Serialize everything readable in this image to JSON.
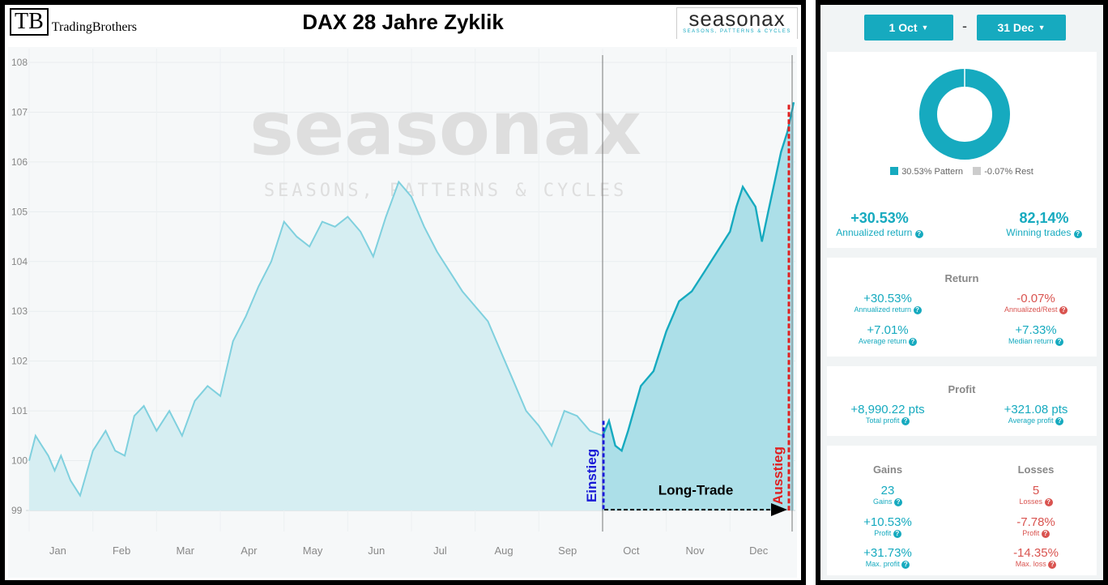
{
  "header": {
    "tb_logo": "TB",
    "tb_name": "TradingBrothers",
    "title": "DAX 28 Jahre Zyklik",
    "brand": "seasonax",
    "brand_tagline": "SEASONS, PATTERNS & CYCLES"
  },
  "watermark": {
    "brand": "seasonax",
    "tagline": "SEASONS, PATTERNS & CYCLES"
  },
  "annotations": {
    "entry": "Einstieg",
    "exit": "Ausstieg",
    "trade": "Long-Trade"
  },
  "colors": {
    "accent": "#16aabf",
    "negative": "#d9534f",
    "line_light": "#7fd0de",
    "fill_light": "#d6eef2",
    "fill_dark": "#acdfe8",
    "entry": "#1a1ad6",
    "exit": "#e02020"
  },
  "chart_data": {
    "type": "area",
    "title": "DAX 28 Jahre Zyklik",
    "xlabel": "",
    "ylabel": "",
    "x_tick_labels": [
      "Jan",
      "Feb",
      "Mar",
      "Apr",
      "May",
      "Jun",
      "Jul",
      "Aug",
      "Sep",
      "Oct",
      "Nov",
      "Dec"
    ],
    "y_tick_labels": [
      "99",
      "100",
      "101",
      "102",
      "103",
      "104",
      "105",
      "106",
      "107",
      "108"
    ],
    "ylim": [
      99,
      108
    ],
    "grid": true,
    "highlight_range": {
      "start": "1 Oct",
      "end": "31 Dec"
    },
    "series": [
      {
        "x": [
          0.0,
          0.1,
          0.2,
          0.3,
          0.4,
          0.5,
          0.65,
          0.8,
          1.0,
          1.2,
          1.35,
          1.5,
          1.65,
          1.8,
          2.0,
          2.2,
          2.4,
          2.6,
          2.8,
          3.0,
          3.2,
          3.4,
          3.6,
          3.8,
          4.0,
          4.2,
          4.4,
          4.6,
          4.8,
          5.0,
          5.2,
          5.4,
          5.6,
          5.8,
          6.0,
          6.2,
          6.4,
          6.6,
          6.8,
          7.0,
          7.2,
          7.4,
          7.6,
          7.8,
          8.0,
          8.2,
          8.4,
          8.6,
          8.8,
          9.0,
          9.1,
          9.2,
          9.3,
          9.4,
          9.6,
          9.8,
          10.0,
          10.2,
          10.4,
          10.6,
          10.8,
          11.0,
          11.1,
          11.2,
          11.3,
          11.4,
          11.5,
          11.6,
          11.7,
          11.8,
          11.9,
          11.95,
          12.0
        ],
        "y": [
          100.0,
          100.5,
          100.3,
          100.1,
          99.8,
          100.1,
          99.6,
          99.3,
          100.2,
          100.6,
          100.2,
          100.1,
          100.9,
          101.1,
          100.6,
          101.0,
          100.5,
          101.2,
          101.5,
          101.3,
          102.4,
          102.9,
          103.5,
          104.0,
          104.8,
          104.5,
          104.3,
          104.8,
          104.7,
          104.9,
          104.6,
          104.1,
          104.9,
          105.6,
          105.3,
          104.7,
          104.2,
          103.8,
          103.4,
          103.1,
          102.8,
          102.2,
          101.6,
          101.0,
          100.7,
          100.3,
          101.0,
          100.9,
          100.6,
          100.5,
          100.8,
          100.3,
          100.2,
          100.6,
          101.5,
          101.8,
          102.6,
          103.2,
          103.4,
          103.8,
          104.2,
          104.6,
          105.1,
          105.5,
          105.3,
          105.1,
          104.4,
          105.0,
          105.6,
          106.2,
          106.6,
          106.9,
          107.2
        ]
      }
    ]
  },
  "controls": {
    "start": "1 Oct",
    "separator": "-",
    "end": "31 Dec"
  },
  "pie": {
    "pattern_label": "30.53% Pattern",
    "rest_label": "-0.07% Rest",
    "pattern_color": "#16aabf",
    "rest_color": "#cccccc",
    "pattern_share": 0.998
  },
  "summary": {
    "annualized": {
      "value": "+30.53%",
      "label": "Annualized return"
    },
    "winning": {
      "value": "82,14%",
      "label": "Winning trades"
    }
  },
  "return_card": {
    "title": "Return",
    "annualized": {
      "value": "+30.53%",
      "label": "Annualized return"
    },
    "rest": {
      "value": "-0.07%",
      "label": "Annualized/Rest"
    },
    "average": {
      "value": "+7.01%",
      "label": "Average return"
    },
    "median": {
      "value": "+7.33%",
      "label": "Median return"
    }
  },
  "profit_card": {
    "title": "Profit",
    "total": {
      "value": "+8,990.22 pts",
      "label": "Total profit"
    },
    "average": {
      "value": "+321.08 pts",
      "label": "Average profit"
    }
  },
  "gains_losses": {
    "gains_title": "Gains",
    "losses_title": "Losses",
    "gains": [
      {
        "value": "23",
        "label": "Gains"
      },
      {
        "value": "+10.53%",
        "label": "Profit"
      },
      {
        "value": "+31.73%",
        "label": "Max. profit"
      }
    ],
    "losses": [
      {
        "value": "5",
        "label": "Losses"
      },
      {
        "value": "-7.78%",
        "label": "Profit"
      },
      {
        "value": "-14.35%",
        "label": "Max. loss"
      }
    ]
  }
}
